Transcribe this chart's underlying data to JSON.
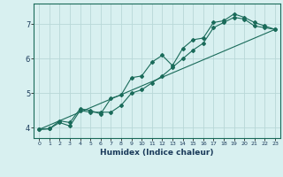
{
  "xlabel": "Humidex (Indice chaleur)",
  "background_color": "#d8f0f0",
  "grid_color": "#b8d8d8",
  "line_color": "#1a6b5a",
  "xlim": [
    -0.5,
    23.5
  ],
  "ylim": [
    3.7,
    7.6
  ],
  "yticks": [
    4,
    5,
    6,
    7
  ],
  "xticks": [
    0,
    1,
    2,
    3,
    4,
    5,
    6,
    7,
    8,
    9,
    10,
    11,
    12,
    13,
    14,
    15,
    16,
    17,
    18,
    19,
    20,
    21,
    22,
    23
  ],
  "line1_x": [
    0,
    1,
    2,
    3,
    4,
    5,
    6,
    7,
    8,
    9,
    10,
    11,
    12,
    13,
    14,
    15,
    16,
    17,
    18,
    19,
    20,
    21,
    22,
    23
  ],
  "line1_y": [
    3.95,
    3.97,
    4.15,
    4.05,
    4.5,
    4.45,
    4.45,
    4.45,
    4.65,
    5.0,
    5.1,
    5.3,
    5.5,
    5.75,
    6.0,
    6.25,
    6.45,
    6.9,
    7.05,
    7.2,
    7.15,
    6.95,
    6.9,
    6.85
  ],
  "line2_x": [
    0,
    1,
    2,
    3,
    4,
    5,
    6,
    7,
    8,
    9,
    10,
    11,
    12,
    13,
    14,
    15,
    16,
    17,
    18,
    19,
    20,
    21,
    22,
    23
  ],
  "line2_y": [
    3.95,
    3.97,
    4.2,
    4.15,
    4.55,
    4.5,
    4.4,
    4.85,
    4.95,
    5.45,
    5.5,
    5.9,
    6.1,
    5.8,
    6.3,
    6.55,
    6.6,
    7.05,
    7.1,
    7.3,
    7.2,
    7.05,
    6.95,
    6.85
  ],
  "line3_x": [
    0,
    23
  ],
  "line3_y": [
    3.95,
    6.85
  ]
}
